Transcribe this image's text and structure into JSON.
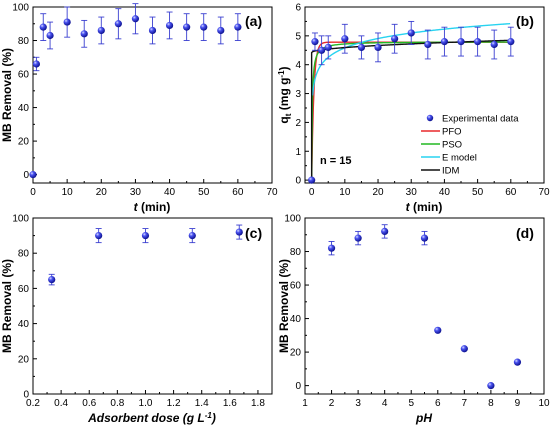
{
  "chart_data": [
    {
      "panel": "(a)",
      "type": "scatter",
      "xlabel_italic": "t",
      "xlabel_rest": "(min)",
      "ylabel": "MB Removal (%)",
      "xlim": [
        0,
        70
      ],
      "ylim": [
        -5,
        100
      ],
      "xticks": [
        0,
        10,
        20,
        30,
        40,
        50,
        60,
        70
      ],
      "yticks": [
        0,
        20,
        40,
        60,
        80,
        100
      ],
      "grid": false,
      "series": [
        {
          "x": [
            0,
            1,
            3,
            5,
            10,
            15,
            20,
            25,
            30,
            35,
            40,
            45,
            50,
            55,
            60
          ],
          "y": [
            0,
            66,
            88,
            83,
            91,
            84,
            86,
            90,
            93,
            86,
            89,
            88,
            88,
            86,
            88
          ],
          "err": [
            0,
            4,
            8,
            8,
            9,
            8,
            8,
            9,
            9,
            8,
            8,
            8,
            8,
            8,
            8
          ]
        }
      ]
    },
    {
      "panel": "(b)",
      "type": "scatter",
      "xlabel_italic": "t",
      "xlabel_rest": "(min)",
      "ylabel": "qt (mg g-1)",
      "ylabel_q": "q",
      "ylabel_sub": "t",
      "ylabel_unit": " (mg g",
      "ylabel_sup": "-1",
      "ylabel_close": ")",
      "annotation": "n = 15",
      "xlim": [
        -2,
        70
      ],
      "ylim": [
        -0.1,
        6
      ],
      "xticks": [
        0,
        10,
        20,
        30,
        40,
        50,
        60,
        70
      ],
      "yticks": [
        0,
        1,
        2,
        3,
        4,
        5,
        6
      ],
      "grid": false,
      "legend_position": "center-right",
      "points": {
        "name": "Experimental data",
        "x": [
          0,
          1,
          3,
          5,
          10,
          15,
          20,
          25,
          30,
          35,
          40,
          45,
          50,
          55,
          60
        ],
        "y": [
          0,
          4.8,
          4.5,
          4.6,
          4.9,
          4.6,
          4.6,
          4.9,
          5.1,
          4.7,
          4.8,
          4.8,
          4.8,
          4.7,
          4.8
        ],
        "err": [
          0,
          0.3,
          0.5,
          0.4,
          0.5,
          0.4,
          0.5,
          0.5,
          0.4,
          0.5,
          0.5,
          0.5,
          0.5,
          0.5,
          0.5
        ]
      },
      "models": [
        {
          "name": "PFO",
          "color": "#e8292b",
          "type": "pfo",
          "qe": 4.78,
          "k": 1.5
        },
        {
          "name": "PSO",
          "color": "#22b822",
          "type": "pso",
          "qe": 4.8,
          "k": 1.2
        },
        {
          "name": "E model",
          "color": "#28d3f0",
          "type": "elovich",
          "a": 3.5,
          "b": 0.47
        },
        {
          "name": "IDM",
          "color": "#111111",
          "type": "idm",
          "c": 4.42,
          "k": 0.055
        }
      ]
    },
    {
      "panel": "(c)",
      "type": "scatter",
      "xlabel_text": "Adsorbent dose (g L",
      "xlabel_sup": "-1",
      "xlabel_close": ")",
      "ylabel": "MB Removal (%)",
      "xlim": [
        0.2,
        1.9
      ],
      "ylim": [
        0,
        100
      ],
      "xticks": [
        0.2,
        0.4,
        0.6,
        0.8,
        1.0,
        1.2,
        1.4,
        1.6,
        1.8
      ],
      "xtick_labels": [
        "0.2",
        "0.4",
        "0.6",
        "0.8",
        "1.0",
        "1.2",
        "1.4",
        "1.6",
        "1.8"
      ],
      "yticks": [
        0,
        20,
        40,
        60,
        80,
        100
      ],
      "grid": false,
      "series": [
        {
          "x": [
            0.333,
            0.667,
            1.0,
            1.333,
            1.667
          ],
          "y": [
            65,
            90,
            90,
            90,
            92
          ],
          "err": [
            3,
            4,
            4,
            4,
            4
          ]
        }
      ]
    },
    {
      "panel": "(d)",
      "type": "scatter",
      "xlabel_italic": "pH",
      "ylabel": "MB Removal (%)",
      "xlim": [
        1,
        10
      ],
      "ylim": [
        -5,
        100
      ],
      "xticks": [
        1,
        2,
        3,
        4,
        5,
        6,
        7,
        8,
        9,
        10
      ],
      "yticks": [
        0,
        20,
        40,
        60,
        80,
        100
      ],
      "grid": false,
      "series": [
        {
          "x": [
            2,
            3,
            4,
            5.5,
            6,
            7,
            8,
            9
          ],
          "y": [
            82,
            88,
            92,
            88,
            33,
            22,
            0,
            14
          ],
          "err": [
            4,
            4,
            4,
            4,
            0,
            0,
            0,
            0
          ]
        }
      ]
    }
  ]
}
